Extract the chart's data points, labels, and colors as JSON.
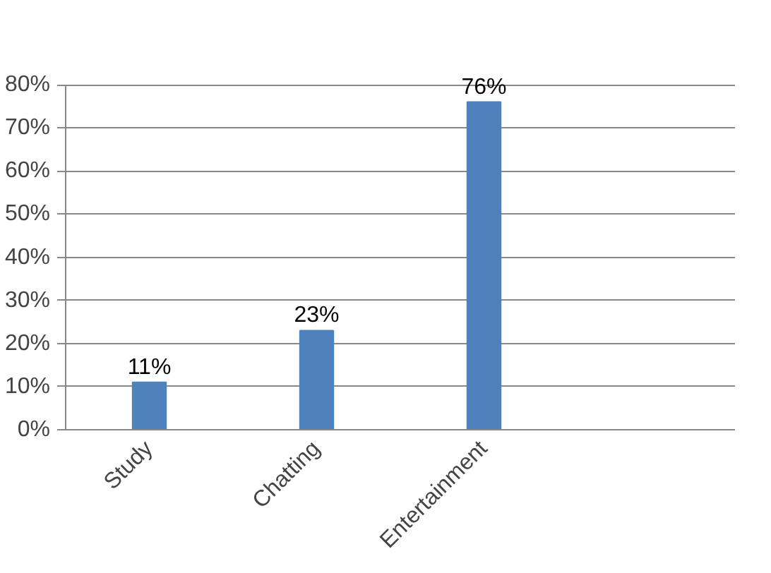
{
  "chart_data": {
    "type": "bar",
    "categories": [
      "Study",
      "Chatting",
      "Entertainment",
      null
    ],
    "values": [
      11,
      23,
      76,
      null
    ],
    "color": "#4f81bd",
    "value_labels": [
      "11%",
      "23%",
      "76%",
      null
    ],
    "ylim": [
      0,
      80
    ],
    "yticks": [
      {
        "value": 0,
        "label": "0%"
      },
      {
        "value": 10,
        "label": "10%"
      },
      {
        "value": 20,
        "label": "20%"
      },
      {
        "value": 30,
        "label": "30%"
      },
      {
        "value": 40,
        "label": "40%"
      },
      {
        "value": 50,
        "label": "50%"
      },
      {
        "value": 60,
        "label": "60%"
      },
      {
        "value": 70,
        "label": "70%"
      },
      {
        "value": 80,
        "label": "80%"
      }
    ],
    "grid": "y"
  }
}
